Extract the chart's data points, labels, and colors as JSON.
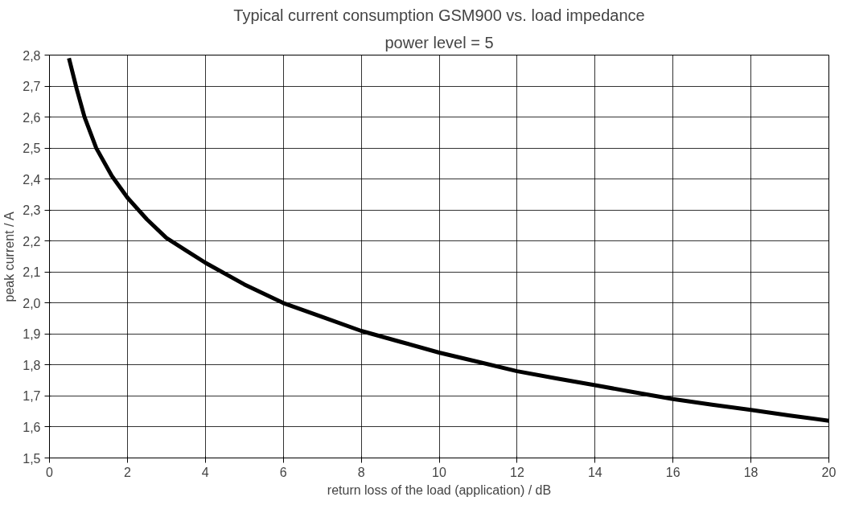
{
  "chart_data": {
    "type": "line",
    "title": "Typical current consumption GSM900 vs. load impedance",
    "subtitle": "power level = 5",
    "xlabel": "return loss of the load (application) / dB",
    "ylabel": "peak current / A",
    "x": [
      0.5,
      0.7,
      0.9,
      1.2,
      1.6,
      2,
      2.5,
      3,
      3.5,
      4,
      5,
      6,
      7,
      8,
      9,
      10,
      11,
      12,
      13,
      14,
      15,
      16,
      17,
      18,
      19,
      20
    ],
    "series": [
      {
        "color": "#000000",
        "values": [
          2.79,
          2.69,
          2.6,
          2.5,
          2.41,
          2.34,
          2.27,
          2.21,
          2.17,
          2.13,
          2.06,
          2.0,
          1.955,
          1.91,
          1.875,
          1.84,
          1.81,
          1.78,
          1.757,
          1.735,
          1.712,
          1.69,
          1.672,
          1.655,
          1.637,
          1.62
        ]
      }
    ],
    "xlim": [
      0,
      20
    ],
    "ylim": [
      1.5,
      2.8
    ],
    "xticks": [
      0,
      2,
      4,
      6,
      8,
      10,
      12,
      14,
      16,
      18,
      20
    ],
    "yticks": [
      {
        "value": 1.5,
        "label": "1,5"
      },
      {
        "value": 1.6,
        "label": "1,6"
      },
      {
        "value": 1.7,
        "label": "1,7"
      },
      {
        "value": 1.8,
        "label": "1,8"
      },
      {
        "value": 1.9,
        "label": "1,9"
      },
      {
        "value": 2.0,
        "label": "2,0"
      },
      {
        "value": 2.1,
        "label": "2,1"
      },
      {
        "value": 2.2,
        "label": "2,2"
      },
      {
        "value": 2.3,
        "label": "2,3"
      },
      {
        "value": 2.4,
        "label": "2,4"
      },
      {
        "value": 2.5,
        "label": "2,5"
      },
      {
        "value": 2.6,
        "label": "2,6"
      },
      {
        "value": 2.7,
        "label": "2,7"
      },
      {
        "value": 2.8,
        "label": "2,8"
      }
    ],
    "grid": true,
    "marker": "none",
    "line_style": "solid"
  }
}
